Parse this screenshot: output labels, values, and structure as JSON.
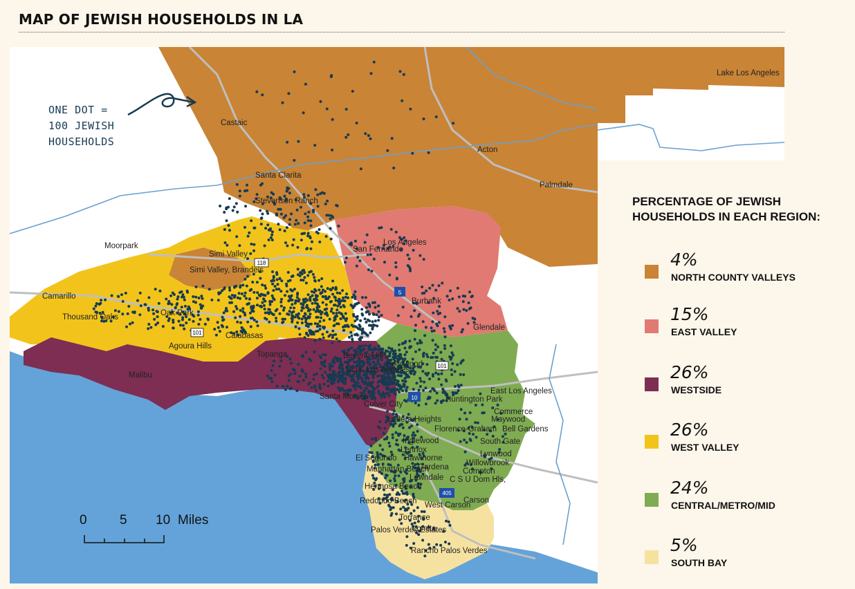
{
  "title": "MAP OF JEWISH HOUSEHOLDS IN LA",
  "annotation": "ONE DOT =\n100 JEWISH\nHOUSEHOLDS",
  "legend": {
    "title": "PERCENTAGE OF JEWISH HOUSEHOLDS IN EACH REGION:",
    "items": [
      {
        "pct": "4%",
        "label": "NORTH COUNTY VALLEYS",
        "color": "#c98436"
      },
      {
        "pct": "15%",
        "label": "EAST VALLEY",
        "color": "#e07a72"
      },
      {
        "pct": "26%",
        "label": "WESTSIDE",
        "color": "#7d2e52"
      },
      {
        "pct": "26%",
        "label": "WEST VALLEY",
        "color": "#f2c41b"
      },
      {
        "pct": "24%",
        "label": "CENTRAL/METRO/MID",
        "color": "#7fab52"
      },
      {
        "pct": "5%",
        "label": "SOUTH BAY",
        "color": "#f6e2a0"
      }
    ]
  },
  "scale": {
    "ticks": [
      "0",
      "5",
      "10"
    ],
    "unit": "Miles"
  },
  "colors": {
    "ocean": "#64a3d9",
    "land": "#ffffff",
    "dot": "#163b52",
    "highway": "#bfbfbf",
    "water_line": "#6aa0cf"
  },
  "places": [
    "Lake Los Angeles",
    "Castaic",
    "Acton",
    "Palmdale",
    "Santa Clarita",
    "Stevenson Ranch",
    "Moorpark",
    "Simi Valley",
    "Simi Valley, Brandeis",
    "San Fernando",
    "Los Angeles",
    "Camarillo",
    "Thousand Oaks",
    "Oak Park",
    "Agoura Hills",
    "Calabasas",
    "Burbank",
    "Glendale",
    "Malibu",
    "Topanga",
    "Beverly Hills",
    "Ucla, Los Angeles",
    "Hollywood",
    "Santa Monica",
    "Culver City",
    "Huntington Park",
    "East Los Angeles",
    "Commerce",
    "Maywood",
    "Florence-Graham",
    "Bell Gardens",
    "Ladera Heights",
    "Inglewood",
    "Lennox",
    "South Gate",
    "Lynwood",
    "El Segundo",
    "Hawthorne",
    "Gardena",
    "Willowbrook",
    "Manhattan Beach",
    "Lawndale",
    "Compton",
    "C S U Dom Hls,",
    "Hermosa Beach",
    "Redondo Beach",
    "Carson",
    "West Carson",
    "Torrance",
    "Palos Verdes Estates",
    "Lomita",
    "Rancho Palos Verdes"
  ],
  "highway_shields": [
    "118",
    "5",
    "101",
    "101",
    "10",
    "405"
  ]
}
